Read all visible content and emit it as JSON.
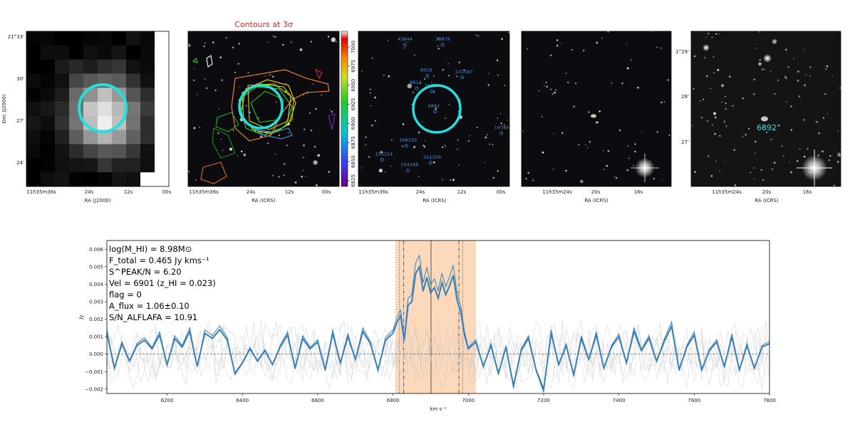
{
  "panels": {
    "p1": {
      "yticks": [
        "21°33'",
        "30'",
        "27'",
        "24'"
      ],
      "xticks": [
        "11h35m36s",
        "24s",
        "12s",
        "00s"
      ],
      "xlabel": "RA (J2000)",
      "ylabel": "Dec (J2000)"
    },
    "p2": {
      "title": "Contours at 3σ",
      "xticks": [
        "11h35m36s",
        "24s",
        "12s",
        "00s"
      ],
      "xlabel": "RA (ICRS)",
      "colorbar_ticks": [
        "7000",
        "6975",
        "6950",
        "6925",
        "6900",
        "6875",
        "6850",
        "6825"
      ]
    },
    "p3": {
      "xticks": [
        "11h35m36s",
        "24s",
        "12s",
        "00s"
      ],
      "xlabel": "RA (ICRS)",
      "labels": [
        {
          "text": "43644",
          "x": 0.26,
          "y": 0.06
        },
        {
          "text": "38879",
          "x": 0.51,
          "y": 0.06
        },
        {
          "text": "8916",
          "x": 0.41,
          "y": 0.26
        },
        {
          "text": "101587",
          "x": 0.64,
          "y": 0.27
        },
        {
          "text": "8812",
          "x": 0.34,
          "y": 0.34
        },
        {
          "text": "5962",
          "x": 0.44,
          "y": 0.36
        },
        {
          "text": "6892",
          "x": 0.46,
          "y": 0.49
        },
        {
          "text": "19780",
          "x": 0.9,
          "y": 0.63
        },
        {
          "text": "168339",
          "x": 0.27,
          "y": 0.71
        },
        {
          "text": "154114",
          "x": 0.11,
          "y": 0.8
        },
        {
          "text": "211309",
          "x": 0.43,
          "y": 0.82
        },
        {
          "text": "154348",
          "x": 0.28,
          "y": 0.87
        }
      ]
    },
    "p4": {
      "xticks": [
        "11h35m24s",
        "20s",
        "16s"
      ],
      "xlabel": "RA (ICRS)"
    },
    "p5": {
      "yticks": [
        "1°29'",
        "28'",
        "27'"
      ],
      "xticks": [
        "11h35m24s",
        "20s",
        "16s"
      ],
      "xlabel": "RA (ICRS)",
      "label": "6892"
    }
  },
  "annotations": [
    "log(M_HI) = 8.98M⊙",
    "F_total = 0.465 Jy kms⁻¹",
    "S^PEAK/N = 6.20",
    "Vel = 6901 (z_HI = 0.023)",
    "flag = 0",
    "A_flux = 1.06±0.10",
    "S/N_ALFLAFA = 10.91"
  ],
  "colors": {
    "spectrum": "#3a7fb5",
    "band": "#fbd5b3",
    "circle": "#22e0e0"
  },
  "chart_data": {
    "type": "line",
    "xlabel": "km s⁻¹",
    "ylabel": "Jy",
    "xlim": [
      6040,
      7800
    ],
    "ylim": [
      -0.00225,
      0.0065
    ],
    "xticks": [
      6200,
      6400,
      6600,
      6800,
      7000,
      7200,
      7400,
      7600,
      7800
    ],
    "yticks": [
      -0.002,
      -0.001,
      0.0,
      0.001,
      0.002,
      0.003,
      0.004,
      0.005,
      0.006
    ],
    "ytick_labels": [
      "−0.002",
      "−0.001",
      "0.000",
      "0.001",
      "0.002",
      "0.003",
      "0.004",
      "0.005",
      "0.006"
    ],
    "shaded_band": [
      6806,
      7020
    ],
    "center_velocity": 6901,
    "dashdot_lines": [
      6828,
      6975
    ],
    "dotted_lines": [
      6817,
      6985
    ],
    "spectrum_x": [
      6040,
      6060,
      6080,
      6100,
      6120,
      6140,
      6160,
      6180,
      6200,
      6220,
      6240,
      6260,
      6280,
      6300,
      6320,
      6340,
      6360,
      6380,
      6400,
      6420,
      6440,
      6460,
      6480,
      6500,
      6520,
      6540,
      6560,
      6580,
      6600,
      6620,
      6640,
      6660,
      6680,
      6700,
      6720,
      6740,
      6760,
      6780,
      6800,
      6810,
      6820,
      6830,
      6840,
      6850,
      6860,
      6870,
      6880,
      6890,
      6900,
      6910,
      6920,
      6930,
      6940,
      6950,
      6960,
      6970,
      6980,
      6990,
      7000,
      7020,
      7040,
      7060,
      7080,
      7100,
      7120,
      7140,
      7160,
      7180,
      7200,
      7220,
      7240,
      7260,
      7280,
      7300,
      7320,
      7340,
      7360,
      7380,
      7400,
      7420,
      7440,
      7460,
      7480,
      7500,
      7520,
      7540,
      7560,
      7580,
      7600,
      7620,
      7640,
      7660,
      7680,
      7700,
      7720,
      7740,
      7760,
      7780,
      7800
    ],
    "spectrum_y": [
      0.0012,
      -0.0008,
      0.0006,
      -0.0004,
      0.0005,
      0.0008,
      0.0003,
      0.0011,
      -0.0006,
      0.0009,
      0.0004,
      0.0013,
      -0.0007,
      0.0012,
      0.0009,
      0.0014,
      0.0008,
      -0.0011,
      -0.0005,
      0.0003,
      -0.0004,
      0.0002,
      -0.0006,
      0.0004,
      0.0011,
      -0.0008,
      0.0009,
      0.0003,
      0.0007,
      -0.0009,
      0.0012,
      -0.0005,
      0.001,
      -0.0003,
      0.0013,
      0.0006,
      -0.0009,
      0.0008,
      0.0012,
      0.0018,
      0.0022,
      0.0008,
      0.0028,
      0.003,
      0.0046,
      0.005,
      0.0036,
      0.0044,
      0.0035,
      0.0038,
      0.0032,
      0.0041,
      0.0034,
      0.0039,
      0.0045,
      0.0031,
      0.0024,
      0.0011,
      0.0003,
      0.0007,
      -0.0007,
      0.0005,
      -0.0011,
      0.0004,
      -0.0018,
      0.0002,
      0.0009,
      -0.0009,
      -0.002,
      0.0012,
      -0.0006,
      0.0005,
      -0.0012,
      0.0009,
      -0.0003,
      0.0011,
      -0.0008,
      0.0004,
      0.001,
      -0.0005,
      0.0013,
      0.0002,
      0.0009,
      -0.0004,
      0.0007,
      0.0016,
      -0.0009,
      0.0004,
      0.0011,
      -0.0009,
      0.0002,
      0.0007,
      -0.0007,
      0.001,
      -0.0009,
      0.0005,
      -0.0008,
      0.0004,
      0.0006
    ]
  }
}
